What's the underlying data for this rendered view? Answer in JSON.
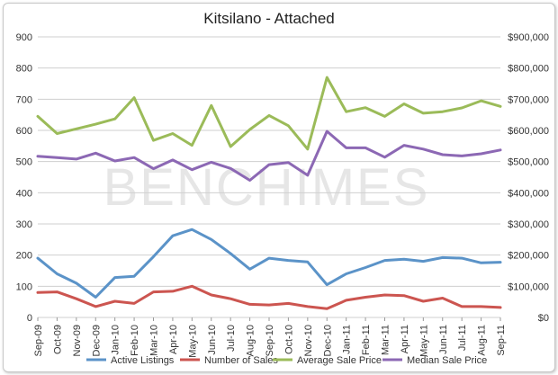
{
  "chart_data": {
    "type": "line",
    "title": "Kitsilano - Attached",
    "watermark": "BENCHIMES",
    "categories": [
      "Sep-09",
      "Oct-09",
      "Nov-09",
      "Dec-09",
      "Jan-10",
      "Feb-10",
      "Mar-10",
      "Apr-10",
      "May-10",
      "Jun-10",
      "Jul-10",
      "Aug-10",
      "Sep-10",
      "Oct-10",
      "Nov-10",
      "Dec-10",
      "Jan-11",
      "Feb-11",
      "Mar-11",
      "Apr-11",
      "May-11",
      "Jun-11",
      "Jul-11",
      "Aug-11",
      "Sep-11"
    ],
    "y_left": {
      "min": 0,
      "max": 900,
      "step": 100,
      "ticks": [
        "0",
        "100",
        "200",
        "300",
        "400",
        "500",
        "600",
        "700",
        "800",
        "900"
      ]
    },
    "y_right": {
      "min": 0,
      "max": 900000,
      "step": 100000,
      "ticks": [
        "$0",
        "$100,000",
        "$200,000",
        "$300,000",
        "$400,000",
        "$500,000",
        "$600,000",
        "$700,000",
        "$800,000",
        "$900,000"
      ]
    },
    "grid": true,
    "legend_position": "bottom",
    "series": [
      {
        "name": "Active Listings",
        "axis": "left",
        "color": "#5b93c8",
        "values": [
          190,
          140,
          110,
          65,
          128,
          132,
          195,
          262,
          282,
          250,
          205,
          155,
          190,
          183,
          178,
          105,
          140,
          160,
          183,
          187,
          180,
          192,
          190,
          175,
          177
        ]
      },
      {
        "name": "Number of Sales",
        "axis": "left",
        "color": "#cc5550",
        "values": [
          80,
          82,
          60,
          35,
          52,
          45,
          82,
          84,
          100,
          72,
          60,
          42,
          40,
          45,
          35,
          28,
          55,
          65,
          72,
          70,
          52,
          62,
          35,
          35,
          32
        ]
      },
      {
        "name": "Average Sale Price",
        "axis": "right",
        "color": "#9bbb59",
        "values": [
          645000,
          590000,
          605000,
          620000,
          637000,
          705000,
          568000,
          590000,
          552000,
          680000,
          548000,
          603000,
          648000,
          615000,
          540000,
          770000,
          660000,
          673000,
          645000,
          685000,
          655000,
          660000,
          672000,
          695000,
          677000
        ]
      },
      {
        "name": "Median Sale Price",
        "axis": "right",
        "color": "#8c68b4",
        "values": [
          517000,
          513000,
          508000,
          527000,
          502000,
          513000,
          477000,
          505000,
          474000,
          498000,
          478000,
          440000,
          490000,
          497000,
          456000,
          597000,
          544000,
          544000,
          514000,
          552000,
          540000,
          522000,
          518000,
          525000,
          537000
        ]
      }
    ]
  }
}
